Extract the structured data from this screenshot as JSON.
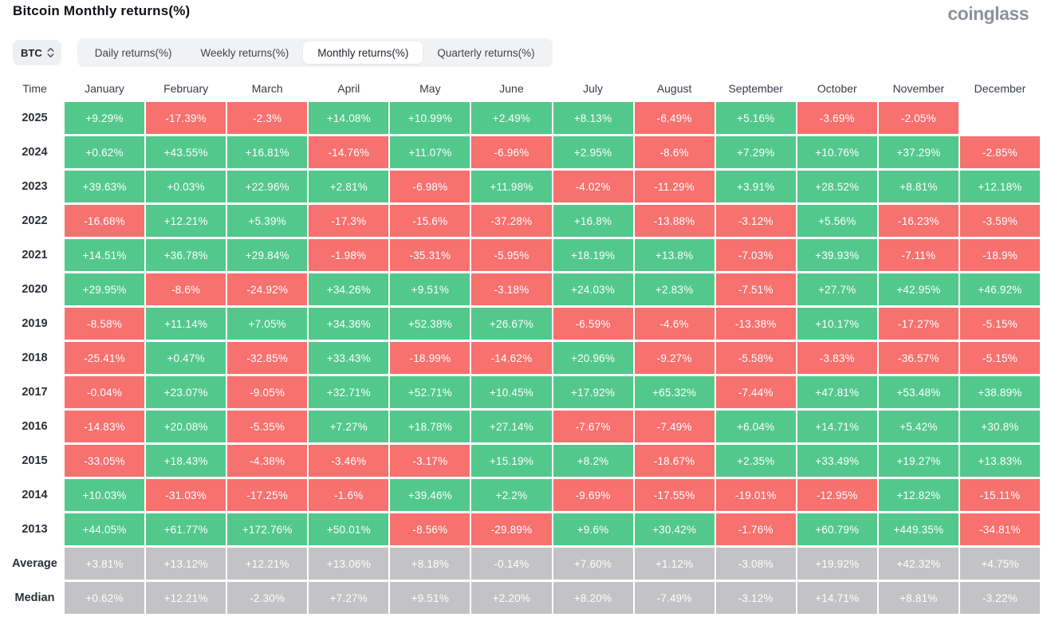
{
  "page": {
    "title": "Bitcoin Monthly returns(%)",
    "logo": "coinglass"
  },
  "controls": {
    "symbol_select": {
      "value": "BTC",
      "icon": "updown-chevrons-icon"
    },
    "tabs": [
      {
        "label": "Daily returns(%)",
        "active": false
      },
      {
        "label": "Weekly returns(%)",
        "active": false
      },
      {
        "label": "Monthly returns(%)",
        "active": true
      },
      {
        "label": "Quarterly returns(%)",
        "active": false
      }
    ]
  },
  "colors": {
    "positive": "#53c88c",
    "negative": "#f7716f",
    "neutral": "#c3c3c5",
    "tab_bar_bg": "#f1f2f4",
    "active_tab_bg": "#ffffff",
    "logo_gray": "#8e919a"
  },
  "chart_data": {
    "type": "table",
    "title": "Bitcoin Monthly returns(%)",
    "columns": [
      "Time",
      "January",
      "February",
      "March",
      "April",
      "May",
      "June",
      "July",
      "August",
      "September",
      "October",
      "November",
      "December"
    ],
    "rows": [
      {
        "label": "2025",
        "kind": "year",
        "values": [
          "+9.29%",
          "-17.39%",
          "-2.3%",
          "+14.08%",
          "+10.99%",
          "+2.49%",
          "+8.13%",
          "-6.49%",
          "+5.16%",
          "-3.69%",
          "-2.05%",
          ""
        ]
      },
      {
        "label": "2024",
        "kind": "year",
        "values": [
          "+0.62%",
          "+43.55%",
          "+16.81%",
          "-14.76%",
          "+11.07%",
          "-6.96%",
          "+2.95%",
          "-8.6%",
          "+7.29%",
          "+10.76%",
          "+37.29%",
          "-2.85%"
        ]
      },
      {
        "label": "2023",
        "kind": "year",
        "values": [
          "+39.63%",
          "+0.03%",
          "+22.96%",
          "+2.81%",
          "-6.98%",
          "+11.98%",
          "-4.02%",
          "-11.29%",
          "+3.91%",
          "+28.52%",
          "+8.81%",
          "+12.18%"
        ]
      },
      {
        "label": "2022",
        "kind": "year",
        "values": [
          "-16.68%",
          "+12.21%",
          "+5.39%",
          "-17.3%",
          "-15.6%",
          "-37.28%",
          "+16.8%",
          "-13.88%",
          "-3.12%",
          "+5.56%",
          "-16.23%",
          "-3.59%"
        ]
      },
      {
        "label": "2021",
        "kind": "year",
        "values": [
          "+14.51%",
          "+36.78%",
          "+29.84%",
          "-1.98%",
          "-35.31%",
          "-5.95%",
          "+18.19%",
          "+13.8%",
          "-7.03%",
          "+39.93%",
          "-7.11%",
          "-18.9%"
        ]
      },
      {
        "label": "2020",
        "kind": "year",
        "values": [
          "+29.95%",
          "-8.6%",
          "-24.92%",
          "+34.26%",
          "+9.51%",
          "-3.18%",
          "+24.03%",
          "+2.83%",
          "-7.51%",
          "+27.7%",
          "+42.95%",
          "+46.92%"
        ]
      },
      {
        "label": "2019",
        "kind": "year",
        "values": [
          "-8.58%",
          "+11.14%",
          "+7.05%",
          "+34.36%",
          "+52.38%",
          "+26.67%",
          "-6.59%",
          "-4.6%",
          "-13.38%",
          "+10.17%",
          "-17.27%",
          "-5.15%"
        ]
      },
      {
        "label": "2018",
        "kind": "year",
        "values": [
          "-25.41%",
          "+0.47%",
          "-32.85%",
          "+33.43%",
          "-18.99%",
          "-14.62%",
          "+20.96%",
          "-9.27%",
          "-5.58%",
          "-3.83%",
          "-36.57%",
          "-5.15%"
        ]
      },
      {
        "label": "2017",
        "kind": "year",
        "values": [
          "-0.04%",
          "+23.07%",
          "-9.05%",
          "+32.71%",
          "+52.71%",
          "+10.45%",
          "+17.92%",
          "+65.32%",
          "-7.44%",
          "+47.81%",
          "+53.48%",
          "+38.89%"
        ]
      },
      {
        "label": "2016",
        "kind": "year",
        "values": [
          "-14.83%",
          "+20.08%",
          "-5.35%",
          "+7.27%",
          "+18.78%",
          "+27.14%",
          "-7.67%",
          "-7.49%",
          "+6.04%",
          "+14.71%",
          "+5.42%",
          "+30.8%"
        ]
      },
      {
        "label": "2015",
        "kind": "year",
        "values": [
          "-33.05%",
          "+18.43%",
          "-4.38%",
          "-3.46%",
          "-3.17%",
          "+15.19%",
          "+8.2%",
          "-18.67%",
          "+2.35%",
          "+33.49%",
          "+19.27%",
          "+13.83%"
        ]
      },
      {
        "label": "2014",
        "kind": "year",
        "values": [
          "+10.03%",
          "-31.03%",
          "-17.25%",
          "-1.6%",
          "+39.46%",
          "+2.2%",
          "-9.69%",
          "-17.55%",
          "-19.01%",
          "-12.95%",
          "+12.82%",
          "-15.11%"
        ]
      },
      {
        "label": "2013",
        "kind": "year",
        "values": [
          "+44.05%",
          "+61.77%",
          "+172.76%",
          "+50.01%",
          "-8.56%",
          "-29.89%",
          "+9.6%",
          "+30.42%",
          "-1.76%",
          "+60.79%",
          "+449.35%",
          "-34.81%"
        ]
      },
      {
        "label": "Average",
        "kind": "aggregate",
        "values": [
          "+3.81%",
          "+13.12%",
          "+12.21%",
          "+13.06%",
          "+8.18%",
          "-0.14%",
          "+7.60%",
          "+1.12%",
          "-3.08%",
          "+19.92%",
          "+42.32%",
          "+4.75%"
        ]
      },
      {
        "label": "Median",
        "kind": "aggregate",
        "values": [
          "+0.62%",
          "+12.21%",
          "-2.30%",
          "+7.27%",
          "+9.51%",
          "+2.20%",
          "+8.20%",
          "-7.49%",
          "-3.12%",
          "+14.71%",
          "+8.81%",
          "-3.22%"
        ]
      }
    ]
  }
}
